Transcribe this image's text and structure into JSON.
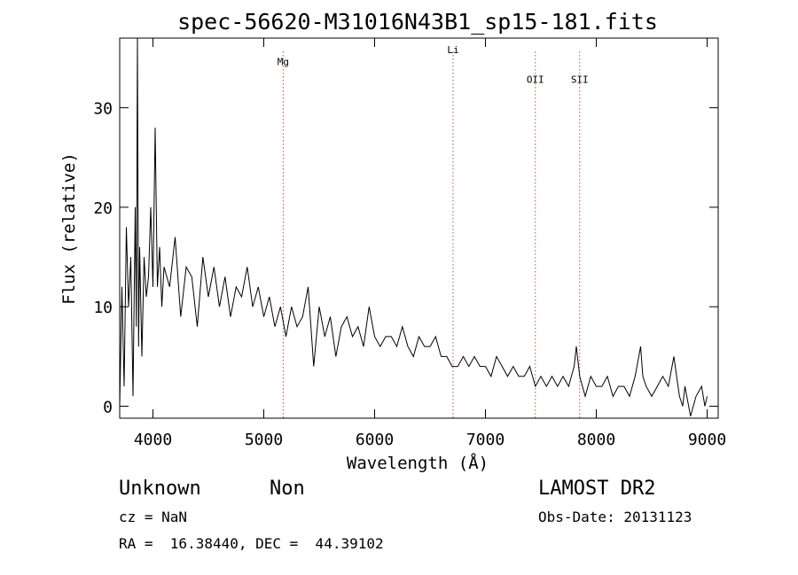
{
  "chart_data": {
    "type": "line",
    "title": "spec-56620-M31016N43B1_sp15-181.fits",
    "xlabel": "Wavelength (Å)",
    "ylabel": "Flux (relative)",
    "xlim": [
      3700,
      9100
    ],
    "ylim": [
      -1.2,
      37
    ],
    "x_ticks": [
      4000,
      5000,
      6000,
      7000,
      8000,
      9000
    ],
    "y_ticks": [
      0,
      10,
      20,
      30
    ],
    "grid": false,
    "series": [
      {
        "x": [
          3700,
          3720,
          3740,
          3760,
          3780,
          3800,
          3820,
          3840,
          3850,
          3860,
          3870,
          3880,
          3900,
          3920,
          3940,
          3960,
          3980,
          4000,
          4020,
          4040,
          4060,
          4080,
          4100,
          4150,
          4200,
          4250,
          4300,
          4350,
          4400,
          4450,
          4500,
          4550,
          4600,
          4650,
          4700,
          4750,
          4800,
          4850,
          4900,
          4950,
          5000,
          5050,
          5100,
          5150,
          5200,
          5250,
          5300,
          5350,
          5400,
          5450,
          5500,
          5550,
          5600,
          5650,
          5700,
          5750,
          5800,
          5850,
          5900,
          5950,
          6000,
          6050,
          6100,
          6150,
          6200,
          6250,
          6300,
          6350,
          6400,
          6450,
          6500,
          6550,
          6600,
          6650,
          6700,
          6750,
          6800,
          6850,
          6900,
          6950,
          7000,
          7050,
          7100,
          7150,
          7200,
          7250,
          7300,
          7350,
          7400,
          7450,
          7500,
          7550,
          7600,
          7650,
          7700,
          7750,
          7800,
          7820,
          7850,
          7900,
          7950,
          8000,
          8050,
          8100,
          8150,
          8200,
          8250,
          8300,
          8350,
          8400,
          8420,
          8450,
          8500,
          8550,
          8600,
          8650,
          8700,
          8750,
          8780,
          8800,
          8850,
          8900,
          8950,
          8980,
          9000
        ],
        "y": [
          0,
          12,
          2,
          18,
          10,
          15,
          1,
          20,
          8,
          37,
          6,
          16,
          5,
          15,
          11,
          13,
          20,
          12,
          28,
          12,
          16,
          10,
          14,
          12,
          17,
          9,
          14,
          13,
          8,
          15,
          11,
          14,
          10,
          13,
          9,
          12,
          11,
          14,
          10,
          12,
          9,
          11,
          8,
          10,
          7,
          10,
          8,
          9,
          12,
          4,
          10,
          7,
          9,
          5,
          8,
          9,
          7,
          8,
          6,
          10,
          7,
          6,
          7,
          7,
          6,
          8,
          6,
          5,
          7,
          6,
          6,
          7,
          5,
          5,
          4,
          4,
          5,
          4,
          5,
          4,
          4,
          3,
          5,
          4,
          3,
          4,
          3,
          3,
          4,
          2,
          3,
          2,
          3,
          2,
          3,
          2,
          4,
          6,
          3,
          1,
          3,
          2,
          2,
          3,
          1,
          2,
          2,
          1,
          3,
          6,
          3,
          2,
          1,
          2,
          3,
          2,
          5,
          1,
          0,
          2,
          -1,
          1,
          2,
          0,
          1
        ]
      }
    ],
    "annotations": [
      {
        "label": "Mg",
        "x": 5175,
        "y": 34.3
      },
      {
        "label": "Li",
        "x": 6708,
        "y": 35.5
      },
      {
        "label": "OII",
        "x": 7450,
        "y": 32.5
      },
      {
        "label": "SII",
        "x": 7850,
        "y": 32.5
      }
    ],
    "line_color": "#000000",
    "marker_color": "#c0504d"
  },
  "info": {
    "object_class": "Unknown",
    "subclass": "Non",
    "survey": "LAMOST DR2",
    "cz": "cz = NaN",
    "obs_date": "Obs-Date: 20131123",
    "radec": "RA =  16.38440, DEC =  44.39102"
  }
}
